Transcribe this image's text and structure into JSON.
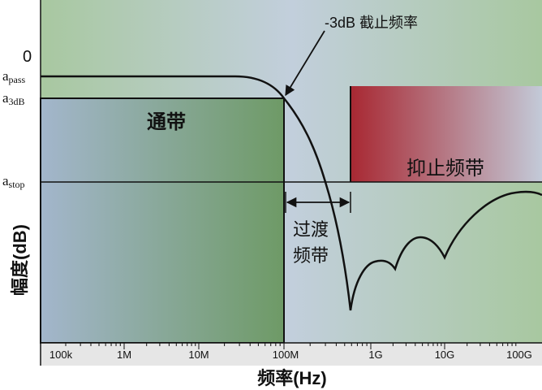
{
  "y_levels": {
    "zero": "0",
    "a_pass": {
      "base": "a",
      "sub": "pass"
    },
    "a_3db": {
      "base": "a",
      "sub": "3dB"
    },
    "a_stop": {
      "base": "a",
      "sub": "stop"
    }
  },
  "y_axis_label": "幅度(dB)",
  "x_axis_label": "频率(Hz)",
  "x_ticks": [
    "100k",
    "1M",
    "10M",
    "100M",
    "1G",
    "10G",
    "100G"
  ],
  "annotations": {
    "cutoff": "-3dB 截止频率",
    "passband": "通带",
    "stopband": "抑止频带",
    "transition_line1": "过渡",
    "transition_line2": "频带"
  },
  "colors": {
    "background_green": "#a8c8a0",
    "background_blue": "#c2cfdc",
    "passband_blue": "#a3b6cc",
    "passband_green": "#6e9a66",
    "stopband_red": "#a82832",
    "stopband_fade": "#c3cad8",
    "curve": "#111111"
  }
}
